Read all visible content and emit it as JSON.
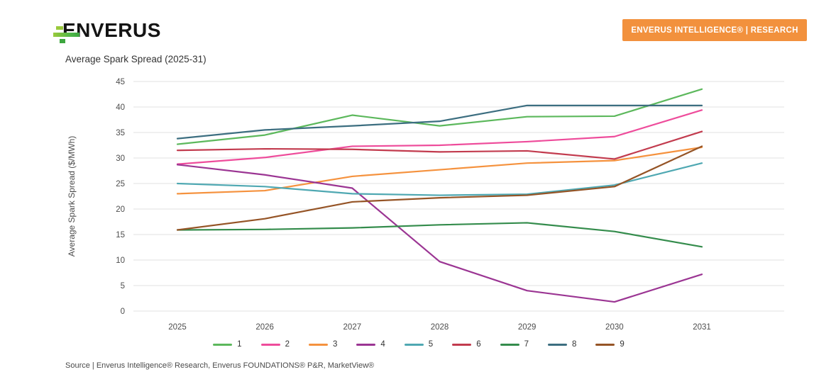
{
  "header": {
    "logo_text": "ENVERUS",
    "badge": "ENVERUS INTELLIGENCE® | RESEARCH",
    "badge_color": "#f2913d"
  },
  "chart_data": {
    "type": "line",
    "title": "Average Spark Spread (2025-31)",
    "ylabel": "Average Spark Spread ($/MWh)",
    "xlabel": "",
    "categories": [
      "2025",
      "2026",
      "2027",
      "2028",
      "2029",
      "2030",
      "2031"
    ],
    "ylim": [
      0,
      45
    ],
    "y_tick_step": 5,
    "grid": "horizontal-only",
    "legend_position": "bottom",
    "series": [
      {
        "name": "1",
        "color": "#5cb85c",
        "values": [
          32.7,
          34.5,
          38.4,
          36.3,
          38.1,
          38.2,
          43.5
        ]
      },
      {
        "name": "2",
        "color": "#ee4c9b",
        "values": [
          28.8,
          30.1,
          32.3,
          32.5,
          33.2,
          34.2,
          39.4
        ]
      },
      {
        "name": "3",
        "color": "#f5923e",
        "values": [
          23.0,
          23.6,
          26.4,
          27.7,
          29.0,
          29.5,
          32.1
        ]
      },
      {
        "name": "4",
        "color": "#9b3593",
        "values": [
          28.7,
          26.7,
          24.1,
          9.7,
          4.0,
          1.8,
          7.2
        ]
      },
      {
        "name": "5",
        "color": "#4fa8b2",
        "values": [
          25.0,
          24.4,
          23.0,
          22.7,
          22.9,
          24.7,
          29.0
        ]
      },
      {
        "name": "6",
        "color": "#c23b4e",
        "values": [
          31.5,
          31.8,
          31.7,
          31.2,
          31.4,
          29.8,
          35.2
        ]
      },
      {
        "name": "7",
        "color": "#348c4c",
        "values": [
          15.9,
          16.0,
          16.3,
          16.9,
          17.3,
          15.6,
          12.6
        ]
      },
      {
        "name": "8",
        "color": "#3c6e80",
        "values": [
          33.8,
          35.5,
          36.3,
          37.2,
          40.3,
          40.3,
          40.3
        ]
      },
      {
        "name": "9",
        "color": "#955426",
        "values": [
          15.9,
          18.1,
          21.4,
          22.2,
          22.7,
          24.4,
          32.3
        ]
      }
    ]
  },
  "footer": {
    "source": "Source | Enverus Intelligence® Research, Enverus FOUNDATIONS® P&R, MarketView®"
  }
}
